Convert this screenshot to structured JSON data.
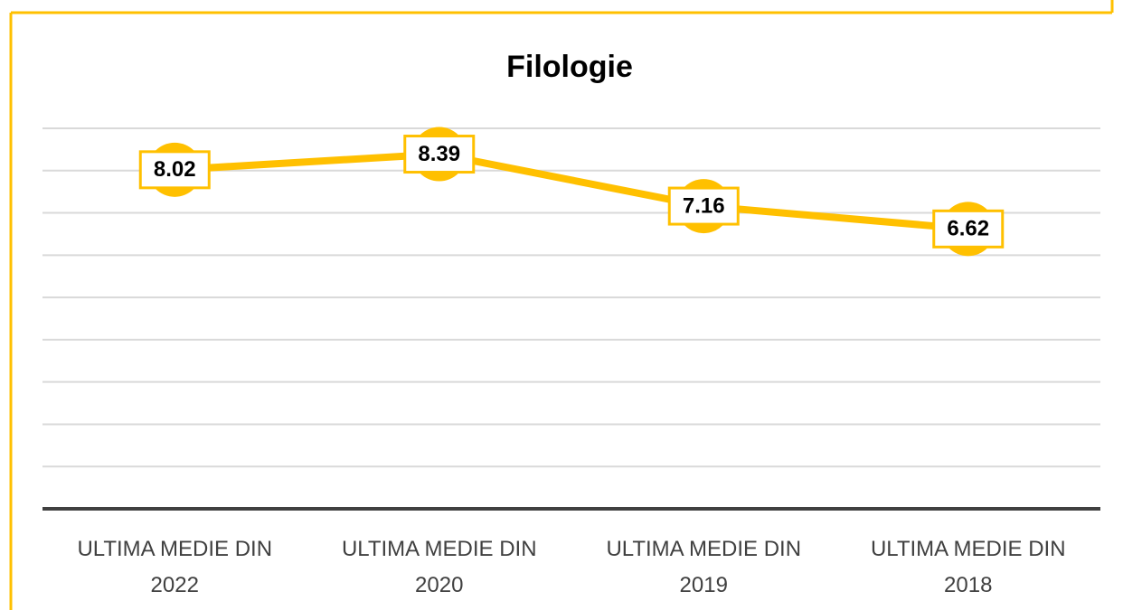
{
  "chart_data": {
    "type": "line",
    "title": "Filologie",
    "categories": [
      "ULTIMA MEDIE DIN 2022",
      "ULTIMA MEDIE DIN 2020",
      "ULTIMA MEDIE DIN 2019",
      "ULTIMA MEDIE DIN 2018"
    ],
    "series": [
      {
        "name": "Filologie",
        "color": "#ffc000",
        "values": [
          8.02,
          8.39,
          7.16,
          6.62
        ]
      }
    ],
    "ylim": [
      0,
      9
    ],
    "yticks": [
      0,
      1,
      2,
      3,
      4,
      5,
      6,
      7,
      8,
      9
    ],
    "grid": true
  }
}
